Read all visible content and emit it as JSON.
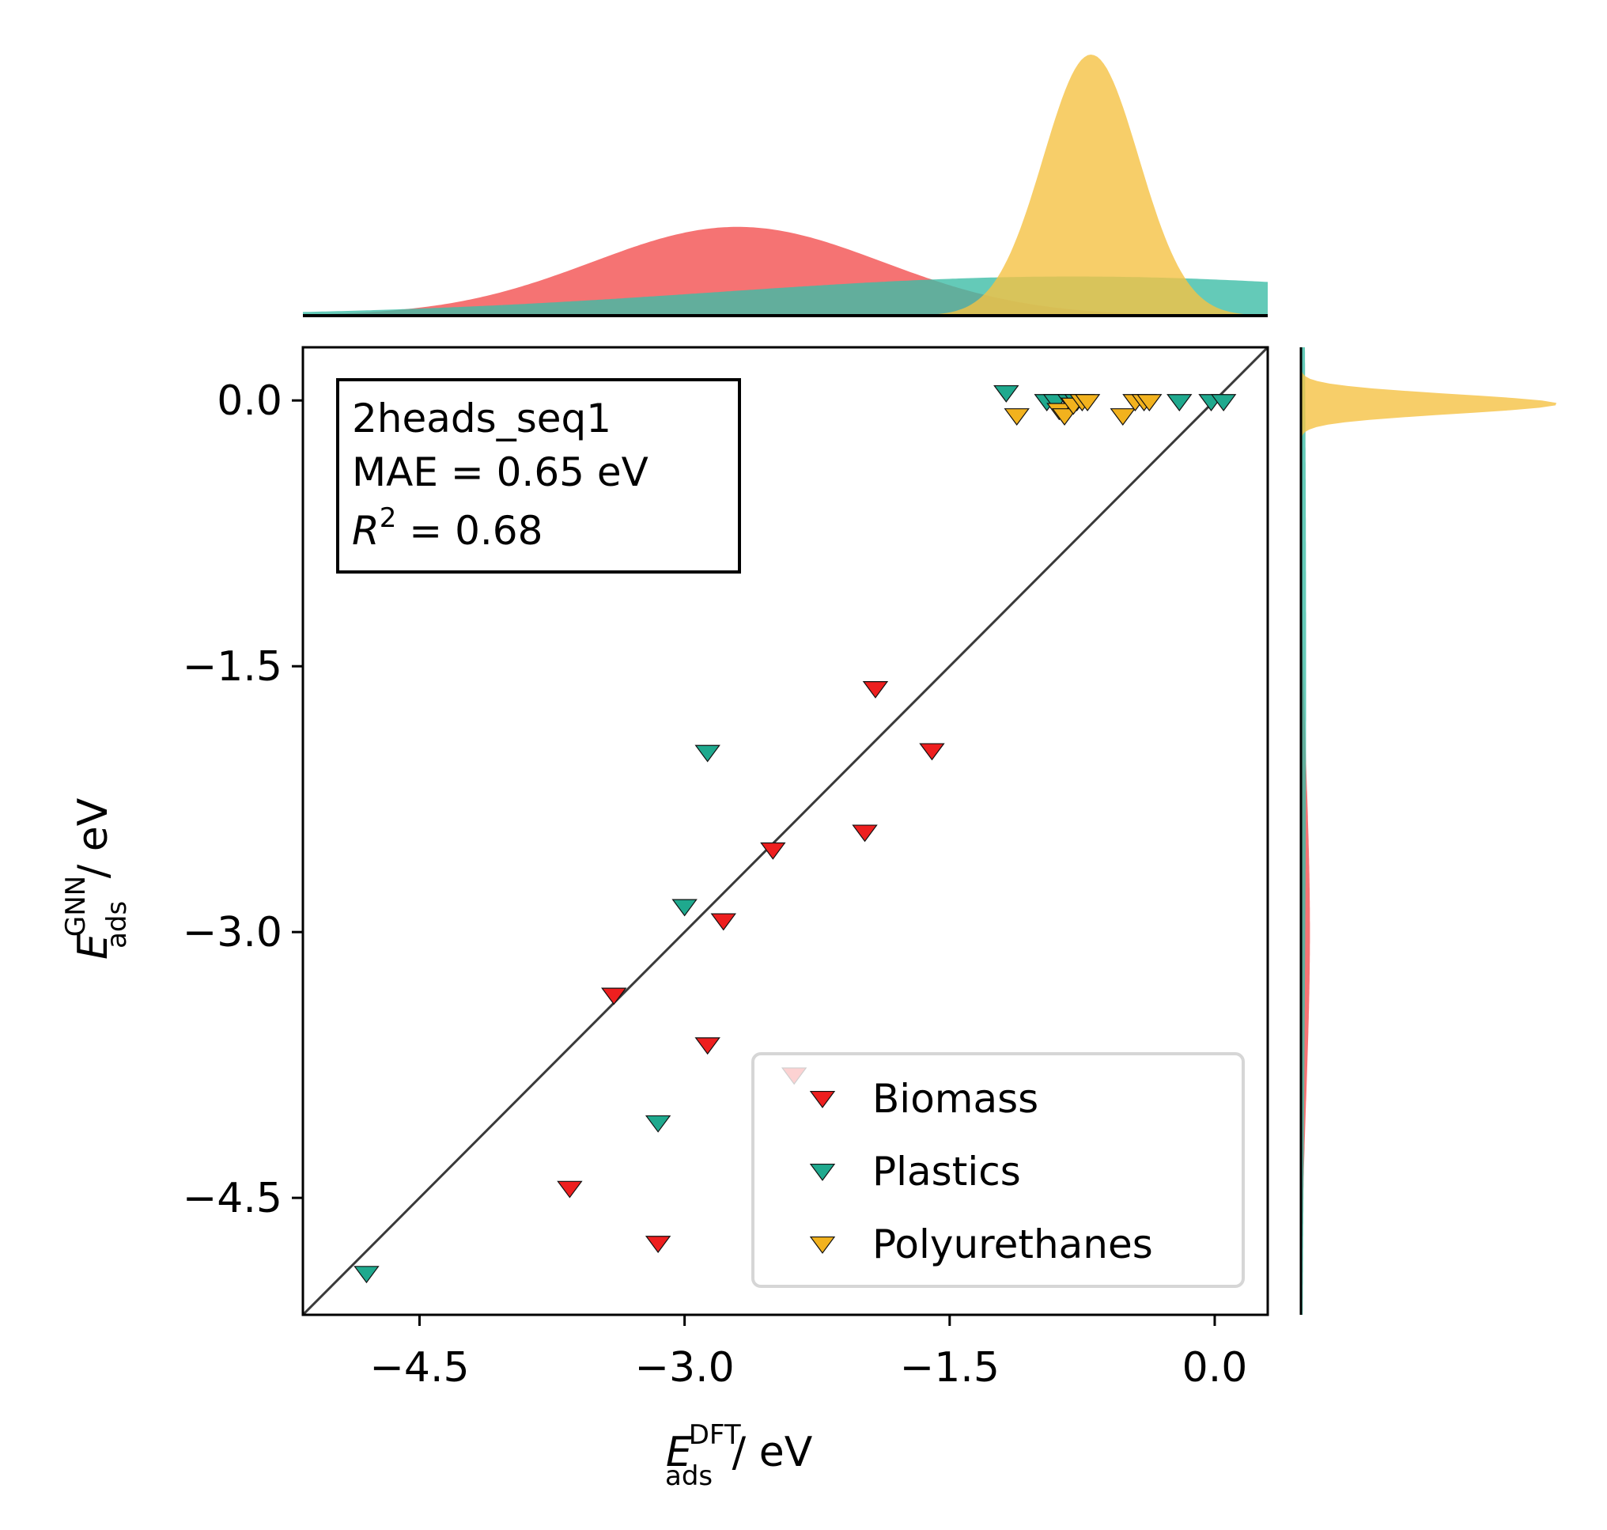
{
  "colors": {
    "Biomass": "#ee1f1f",
    "Plastics": "#1fa98e",
    "Polyurethanes": "#f2b21e",
    "Biomass_kde": "#f25050",
    "Plastics_kde": "#3dbda6",
    "Polyurethanes_kde": "#f5c244",
    "parity_line": "#3a3a3a"
  },
  "chart_data": {
    "type": "scatter",
    "marker": "triangle-down",
    "xlabel": {
      "sym": "E",
      "sub": "ads",
      "sup": "DFT",
      "unit": " / eV"
    },
    "ylabel": {
      "sym": "E",
      "sub": "ads",
      "sup": "GNN",
      "unit": " / eV"
    },
    "xlim": [
      -5.16,
      0.3
    ],
    "ylim": [
      -5.16,
      0.3
    ],
    "xticks": [
      -4.5,
      -3.0,
      -1.5,
      0.0
    ],
    "yticks": [
      0.0,
      -1.5,
      -3.0,
      -4.5
    ],
    "xtick_labels": [
      "−4.5",
      "−3.0",
      "−1.5",
      "0.0"
    ],
    "ytick_labels": [
      "0.0",
      "−1.5",
      "−3.0",
      "−4.5"
    ],
    "parity_line": true,
    "annotation": {
      "name": "2heads_seq1",
      "mae": "MAE = 0.65 eV",
      "r2_label": "R",
      "r2_sup": "2",
      "r2_value": " = 0.68"
    },
    "legend": {
      "placement": "lower right",
      "entries": [
        "Biomass",
        "Plastics",
        "Polyurethanes"
      ]
    },
    "series": [
      {
        "name": "Biomass",
        "points": [
          [
            -1.92,
            -1.62
          ],
          [
            -1.6,
            -1.97
          ],
          [
            -1.98,
            -2.43
          ],
          [
            -2.5,
            -2.53
          ],
          [
            -2.78,
            -2.93
          ],
          [
            -3.4,
            -3.35
          ],
          [
            -2.87,
            -3.63
          ],
          [
            -2.38,
            -3.8
          ],
          [
            -3.65,
            -4.44
          ],
          [
            -3.15,
            -4.75
          ]
        ]
      },
      {
        "name": "Plastics",
        "points": [
          [
            -2.87,
            -1.98
          ],
          [
            -3.0,
            -2.85
          ],
          [
            -3.15,
            -4.07
          ],
          [
            -4.8,
            -4.92
          ],
          [
            -1.18,
            0.05
          ],
          [
            -0.95,
            0.0
          ],
          [
            -0.9,
            0.0
          ],
          [
            -0.82,
            0.0
          ],
          [
            -0.78,
            0.0
          ],
          [
            -0.2,
            0.0
          ],
          [
            -0.02,
            0.0
          ],
          [
            0.05,
            0.0
          ]
        ]
      },
      {
        "name": "Polyurethanes",
        "points": [
          [
            -1.12,
            -0.08
          ],
          [
            -0.88,
            -0.05
          ],
          [
            -0.85,
            -0.08
          ],
          [
            -0.8,
            -0.02
          ],
          [
            -0.75,
            0.0
          ],
          [
            -0.72,
            0.0
          ],
          [
            -0.52,
            -0.08
          ],
          [
            -0.45,
            0.0
          ],
          [
            -0.4,
            0.0
          ],
          [
            -0.37,
            0.0
          ]
        ]
      }
    ],
    "kde_x": [
      {
        "name": "Biomass",
        "mean": -2.7,
        "sd": 0.82,
        "peak": 0.34
      },
      {
        "name": "Plastics",
        "mean": -0.8,
        "sd": 2.0,
        "peak": 0.15
      },
      {
        "name": "Polyurethanes",
        "mean": -0.7,
        "sd": 0.27,
        "peak": 1.0
      }
    ],
    "kde_y": [
      {
        "name": "Biomass",
        "mean": -3.0,
        "sd": 0.9,
        "peak": 0.035
      },
      {
        "name": "Plastics",
        "mean": -1.5,
        "sd": 2.5,
        "peak": 0.02
      },
      {
        "name": "Polyurethanes",
        "mean": -0.02,
        "sd": 0.055,
        "peak": 1.0
      }
    ]
  }
}
